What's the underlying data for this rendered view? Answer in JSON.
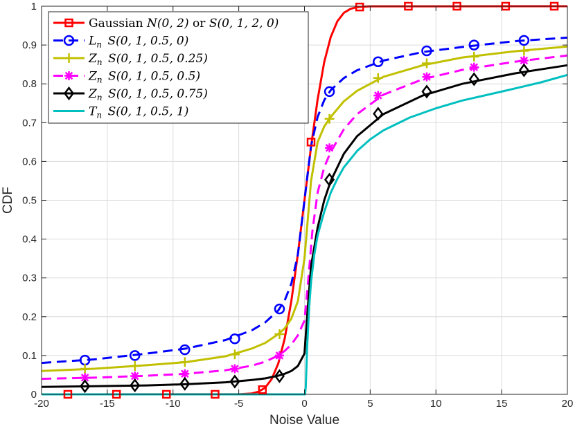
{
  "chart_data": {
    "type": "line",
    "title": "",
    "xlabel": "Noise Value",
    "ylabel": "CDF",
    "xlim": [
      -20,
      20
    ],
    "ylim": [
      0,
      1
    ],
    "x_ticks": [
      -20,
      -15,
      -10,
      -5,
      0,
      5,
      10,
      15,
      20
    ],
    "y_ticks": [
      0,
      0.1,
      0.2,
      0.3,
      0.4,
      0.5,
      0.6,
      0.7,
      0.8,
      0.9,
      1
    ],
    "x_tick_labels": [
      "-20",
      "-15",
      "-10",
      "-5",
      "0",
      "5",
      "10",
      "15",
      "20"
    ],
    "y_tick_labels": [
      "0",
      "0.1",
      "0.2",
      "0.3",
      "0.4",
      "0.5",
      "0.6",
      "0.7",
      "0.8",
      "0.9",
      "1"
    ],
    "grid": true,
    "legend_position": "top-left",
    "series": [
      {
        "name": "Gaussian N(0,2) or S(0,1,2,0)",
        "legend_plain": "Gaussian ",
        "legend_math": "N(0, 2)",
        "legend_mid": " or ",
        "legend_math2": "S(0, 1, 2, 0)",
        "color": "#ff0000",
        "dash": "solid",
        "marker": "square",
        "x": [
          -20,
          -6,
          -5,
          -4,
          -3.5,
          -3,
          -2.5,
          -2,
          -1.5,
          -1,
          -0.5,
          0,
          0.5,
          1,
          1.5,
          2,
          2.5,
          3,
          3.5,
          4,
          5,
          20
        ],
        "values": [
          0,
          0.0001,
          0.0002,
          0.0023,
          0.0067,
          0.017,
          0.039,
          0.079,
          0.144,
          0.24,
          0.362,
          0.5,
          0.638,
          0.76,
          0.856,
          0.921,
          0.961,
          0.983,
          0.9933,
          0.9977,
          0.9998,
          1
        ],
        "marker_x": [
          -18,
          -14.3,
          -10.5,
          -6.8,
          -3.2,
          0.5,
          4.2,
          7.9,
          11.6,
          15.3,
          19.0
        ],
        "marker_y": [
          0,
          0,
          0,
          0,
          0.012,
          0.65,
          0.998,
          1,
          1,
          1,
          1
        ]
      },
      {
        "name": "Ln S(0,1,0.5,0)",
        "legend_sym": "L",
        "legend_sub": "n",
        "legend_math": "S(0, 1, 0.5, 0)",
        "color": "#0000ff",
        "dash": "dashed",
        "marker": "circle",
        "x": [
          -20,
          -16,
          -12,
          -9,
          -6,
          -4,
          -3,
          -2,
          -1.5,
          -1,
          -0.5,
          0,
          0.5,
          1,
          1.5,
          2,
          3,
          4,
          6,
          9,
          12,
          16,
          20
        ],
        "values": [
          0.081,
          0.09,
          0.105,
          0.118,
          0.14,
          0.165,
          0.185,
          0.216,
          0.242,
          0.285,
          0.36,
          0.5,
          0.64,
          0.715,
          0.758,
          0.784,
          0.815,
          0.835,
          0.86,
          0.882,
          0.895,
          0.91,
          0.919
        ],
        "marker_x": [
          -16.7,
          -12.9,
          -9.1,
          -5.3,
          -1.9,
          1.9,
          5.6,
          9.3,
          12.9,
          16.7
        ],
        "marker_y": [
          0.088,
          0.1,
          0.115,
          0.143,
          0.22,
          0.78,
          0.857,
          0.885,
          0.9,
          0.912
        ]
      },
      {
        "name": "Zn S(0,1,0.5,0.25)",
        "legend_sym": "Z",
        "legend_sub": "n",
        "legend_math": "S(0, 1, 0.5, 0.25)",
        "color": "#c0c000",
        "dash": "solid",
        "marker": "plus",
        "x": [
          -20,
          -16,
          -12,
          -9,
          -6,
          -4,
          -3,
          -2,
          -1.5,
          -1,
          -0.5,
          0,
          0.5,
          1,
          1.5,
          2,
          3,
          4,
          6,
          9,
          12,
          16,
          20
        ],
        "values": [
          0.06,
          0.066,
          0.075,
          0.083,
          0.098,
          0.118,
          0.132,
          0.155,
          0.17,
          0.195,
          0.24,
          0.35,
          0.55,
          0.65,
          0.69,
          0.715,
          0.755,
          0.782,
          0.818,
          0.848,
          0.868,
          0.884,
          0.896
        ],
        "marker_x": [
          -16.7,
          -12.9,
          -9.1,
          -5.3,
          -1.9,
          1.9,
          5.6,
          9.3,
          12.9,
          16.7
        ],
        "marker_y": [
          0.066,
          0.073,
          0.083,
          0.103,
          0.155,
          0.71,
          0.815,
          0.853,
          0.87,
          0.885
        ]
      },
      {
        "name": "Zn S(0,1,0.5,0.5)",
        "legend_sym": "Z",
        "legend_sub": "n",
        "legend_math": "S(0, 1, 0.5, 0.5)",
        "color": "#ff00ff",
        "dash": "dashed",
        "marker": "asterisk",
        "x": [
          -20,
          -16,
          -12,
          -9,
          -6,
          -4,
          -3,
          -2,
          -1.5,
          -1,
          -0.5,
          0,
          0.3,
          0.6,
          1,
          1.5,
          2,
          3,
          4,
          6,
          9,
          12,
          16,
          20
        ],
        "values": [
          0.04,
          0.043,
          0.048,
          0.053,
          0.062,
          0.074,
          0.084,
          0.1,
          0.112,
          0.128,
          0.152,
          0.19,
          0.3,
          0.42,
          0.52,
          0.585,
          0.625,
          0.683,
          0.722,
          0.772,
          0.812,
          0.836,
          0.857,
          0.873
        ],
        "marker_x": [
          -16.7,
          -12.9,
          -9.1,
          -5.3,
          -1.9,
          1.9,
          5.6,
          9.3,
          12.9,
          16.7
        ],
        "marker_y": [
          0.043,
          0.047,
          0.053,
          0.066,
          0.1,
          0.635,
          0.77,
          0.818,
          0.843,
          0.86
        ]
      },
      {
        "name": "Zn S(0,1,0.5,0.75)",
        "legend_sym": "Z",
        "legend_sub": "n",
        "legend_math": "S(0, 1, 0.5, 0.75)",
        "color": "#000000",
        "dash": "solid",
        "marker": "diamond",
        "x": [
          -20,
          -16,
          -12,
          -9,
          -6,
          -4,
          -3,
          -2,
          -1.5,
          -1,
          -0.5,
          0,
          0.2,
          0.5,
          1,
          1.5,
          2,
          3,
          4,
          6,
          9,
          12,
          16,
          20
        ],
        "values": [
          0.019,
          0.021,
          0.023,
          0.026,
          0.031,
          0.037,
          0.041,
          0.048,
          0.053,
          0.06,
          0.073,
          0.105,
          0.2,
          0.33,
          0.43,
          0.5,
          0.55,
          0.62,
          0.665,
          0.722,
          0.77,
          0.8,
          0.827,
          0.848
        ],
        "marker_x": [
          -16.7,
          -12.9,
          -9.1,
          -5.3,
          -1.9,
          1.9,
          5.6,
          9.3,
          12.9,
          16.7
        ],
        "marker_y": [
          0.021,
          0.023,
          0.027,
          0.033,
          0.047,
          0.553,
          0.723,
          0.78,
          0.812,
          0.835
        ]
      },
      {
        "name": "Tn S(0,1,0.5,1)",
        "legend_sym": "T",
        "legend_sub": "n",
        "legend_math": "S(0, 1, 0.5, 1)",
        "color": "#00bfbf",
        "dash": "solid",
        "marker": "none",
        "x": [
          -20,
          0.05,
          0.1,
          0.2,
          0.35,
          0.5,
          0.75,
          1,
          1.5,
          2,
          2.5,
          3,
          4,
          5,
          6,
          8,
          10,
          12,
          15,
          18,
          20
        ],
        "values": [
          0,
          0,
          0.02,
          0.12,
          0.22,
          0.29,
          0.36,
          0.41,
          0.47,
          0.52,
          0.555,
          0.585,
          0.627,
          0.657,
          0.68,
          0.713,
          0.737,
          0.757,
          0.78,
          0.804,
          0.823
        ],
        "marker_x": [],
        "marker_y": []
      }
    ]
  }
}
